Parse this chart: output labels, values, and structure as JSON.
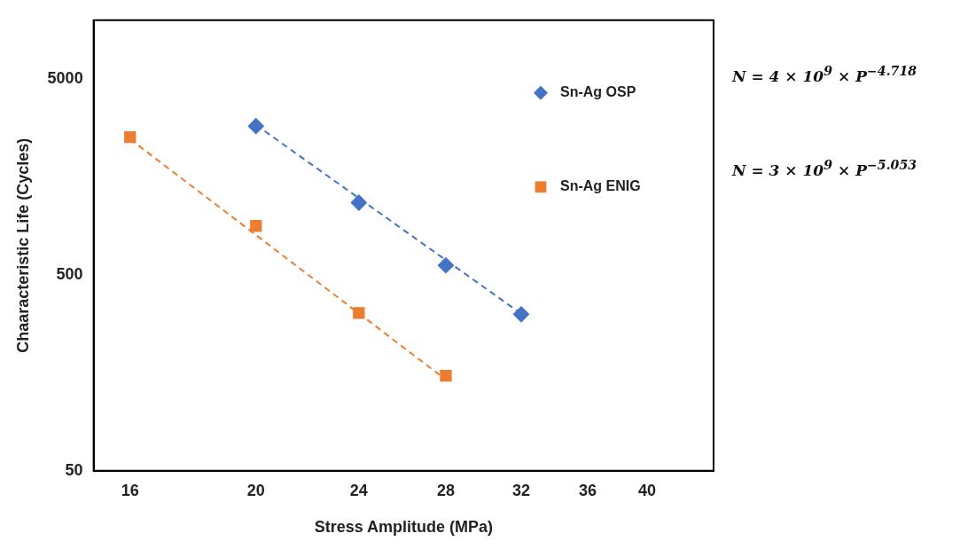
{
  "chart_data": {
    "type": "scatter",
    "xlabel": "Stress Amplitude (MPa)",
    "ylabel": "Chaaracteristic Life (Cycles)",
    "log": "xy",
    "xlim": [
      15,
      45
    ],
    "xticks": [
      16,
      20,
      24,
      28,
      32,
      36,
      40
    ],
    "ylim": [
      50,
      10000
    ],
    "yticks": [
      50,
      500,
      5000
    ],
    "grid": false,
    "legend": "top right",
    "series": [
      {
        "name": "Sn-Ag OSP",
        "color": "#4472c4",
        "marker": "diamond",
        "x": [
          20,
          24,
          28,
          32
        ],
        "values": [
          2880,
          1170,
          560,
          315
        ]
      },
      {
        "name": "Sn-Ag ENIG",
        "color": "#ed7d31",
        "marker": "square",
        "x": [
          16,
          20,
          24,
          28
        ],
        "values": [
          2530,
          890,
          320,
          153
        ]
      },
      {
        "type": "line",
        "color": "#4472c4",
        "marker": "none",
        "line_style": "dashed",
        "x": [
          20,
          32
        ],
        "values": [
          2920,
          317
        ]
      },
      {
        "type": "line",
        "color": "#ed7d31",
        "marker": "none",
        "line_style": "dashed",
        "x": [
          16,
          28
        ],
        "values": [
          2470,
          146
        ]
      }
    ],
    "annotations": [
      "N = 4 × 10$^{9}$ × P$^{−4.718}$",
      "N = 3 × 10$^{9}$ × P$^{−5.053}$"
    ]
  }
}
